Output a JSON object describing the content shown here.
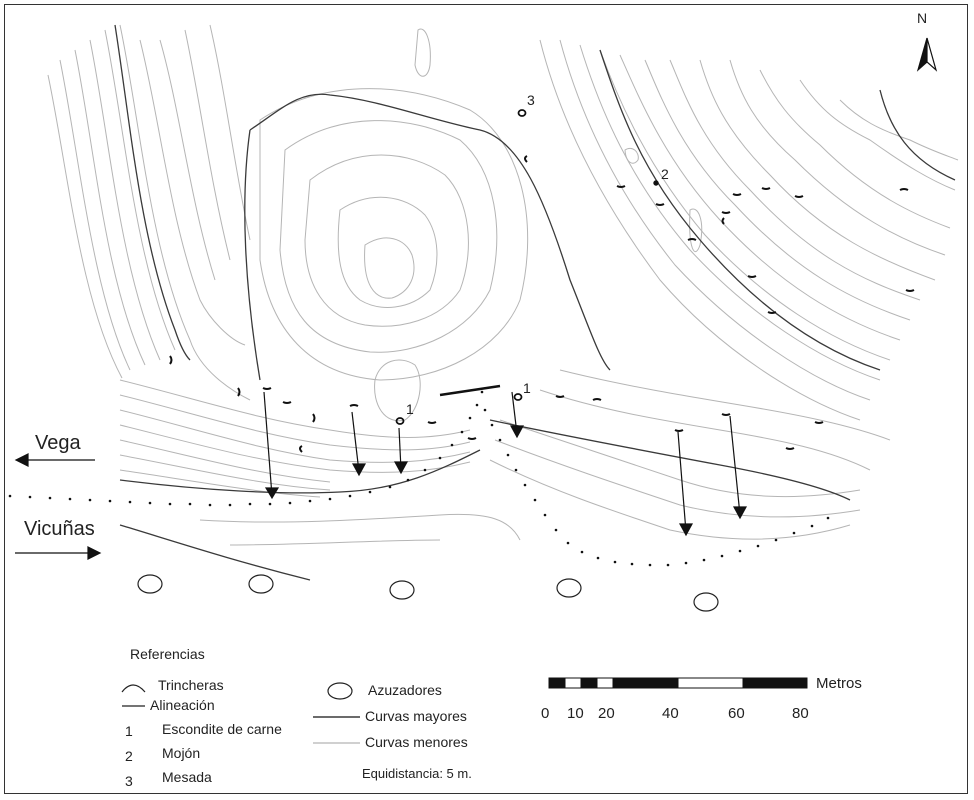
{
  "map": {
    "north_label": "N",
    "vega_label": "Vega",
    "vicunas_label": "Vicuñas",
    "point_labels": {
      "p1a": "1",
      "p1b": "1",
      "p2": "2",
      "p3": "3"
    }
  },
  "legend": {
    "title": "Referencias",
    "trincheras": "Trincheras",
    "alineacion": "Alineación",
    "n1": "1",
    "escondite": "Escondite de carne",
    "n2": "2",
    "mojon": "Mojón",
    "n3": "3",
    "mesada": "Mesada",
    "azuzadores": "Azuzadores",
    "curvas_mayores": "Curvas mayores",
    "curvas_menores": "Curvas menores",
    "equidistancia": "Equidistancia: 5 m."
  },
  "scale": {
    "unit": "Metros",
    "ticks": [
      "0",
      "10",
      "20",
      "40",
      "60",
      "80"
    ]
  },
  "colors": {
    "minor": "#b5b5b5",
    "major": "#3a3a3a",
    "ink": "#111111"
  }
}
